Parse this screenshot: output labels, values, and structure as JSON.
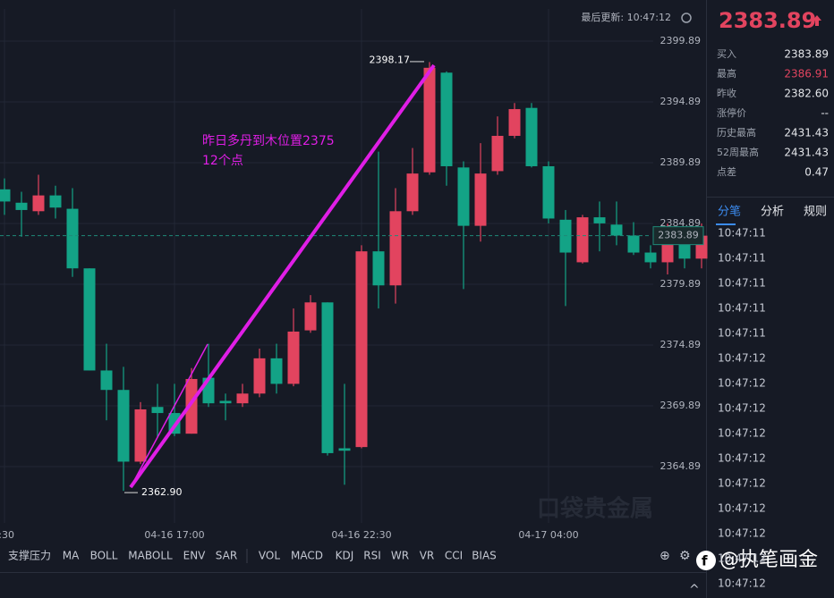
{
  "header": {
    "updated": "最后更新: 10:47:12"
  },
  "chart_data": {
    "type": "candlestick",
    "categories": [
      ":30",
      null,
      null,
      null,
      null,
      null,
      null,
      null,
      null,
      null,
      "04-16 17:00",
      null,
      null,
      null,
      null,
      null,
      null,
      null,
      null,
      null,
      null,
      "04-16 22:30",
      null,
      null,
      null,
      null,
      null,
      null,
      null,
      null,
      null,
      null,
      "04-17 04:00",
      null,
      null,
      null,
      null,
      null,
      null,
      null,
      null,
      null
    ],
    "open": [
      2387.7,
      2386.6,
      2385.9,
      2387.2,
      2386.1,
      2381.2,
      2372.8,
      2371.2,
      2365.3,
      2369.8,
      2369.3,
      2367.6,
      2372.2,
      2370.3,
      2370.1,
      2370.9,
      2373.8,
      2371.7,
      2376.1,
      2378.4,
      2366.4,
      2366.5,
      2382.6,
      2379.8,
      2385.9,
      2389.1,
      2397.3,
      2389.5,
      2384.7,
      2389.2,
      2392.1,
      2394.4,
      2389.6,
      2385.2,
      2381.7,
      2385.4,
      2384.8,
      2383.9,
      2382.5,
      2381.7,
      2383.6,
      2382.0
    ],
    "high": [
      2388.6,
      2387.5,
      2388.9,
      2388.0,
      2387.8,
      2381.2,
      2375.0,
      2373.1,
      2370.2,
      2371.7,
      2371.7,
      2373.0,
      2375.0,
      2370.9,
      2371.7,
      2374.6,
      2375.0,
      2377.9,
      2379.0,
      2378.4,
      2371.7,
      2383.1,
      2390.8,
      2387.8,
      2391.1,
      2398.17,
      2397.4,
      2390.0,
      2391.5,
      2393.7,
      2394.8,
      2394.8,
      2390.0,
      2386.0,
      2385.6,
      2386.7,
      2386.7,
      2385.0,
      2383.1,
      2384.9,
      2384.2,
      2384.9
    ],
    "low": [
      2385.6,
      2383.8,
      2385.6,
      2385.3,
      2380.5,
      2372.8,
      2368.7,
      2362.9,
      2365.1,
      2367.3,
      2367.4,
      2367.6,
      2369.8,
      2368.7,
      2369.8,
      2370.6,
      2370.9,
      2371.5,
      2375.9,
      2365.8,
      2363.4,
      2366.4,
      2377.9,
      2378.3,
      2385.6,
      2388.9,
      2388.0,
      2379.5,
      2383.4,
      2388.9,
      2391.9,
      2389.5,
      2384.9,
      2378.1,
      2381.6,
      2382.6,
      2383.1,
      2382.3,
      2381.2,
      2380.7,
      2381.2,
      2381.2
    ],
    "close": [
      2386.7,
      2386.0,
      2387.2,
      2386.2,
      2381.2,
      2372.8,
      2371.2,
      2365.3,
      2369.6,
      2369.3,
      2367.6,
      2372.1,
      2370.1,
      2370.1,
      2370.9,
      2373.8,
      2371.7,
      2376.0,
      2378.4,
      2366.0,
      2366.2,
      2382.6,
      2379.8,
      2385.9,
      2389.0,
      2397.7,
      2389.6,
      2384.7,
      2389.0,
      2392.1,
      2394.3,
      2389.6,
      2385.3,
      2382.5,
      2385.4,
      2384.9,
      2383.9,
      2382.5,
      2381.7,
      2383.6,
      2382.0,
      2383.89
    ],
    "up_color": "#e2445f",
    "down_color": "#13a386",
    "ylim": [
      2360.26,
      2402.54
    ],
    "yticks": [
      2364.89,
      2369.89,
      2374.89,
      2379.89,
      2384.89,
      2389.89,
      2394.89,
      2399.89
    ],
    "grid": true,
    "last_price": 2383.89,
    "extreme_labels": {
      "high": "2398.17",
      "low": "2362.90"
    },
    "note": [
      "昨日多丹到木位置2375",
      "12个点"
    ],
    "watermark": "口袋贵金属"
  },
  "toolbar": [
    "支撑压力",
    "MA",
    "BOLL",
    "MABOLL",
    "ENV",
    "SAR",
    "VOL",
    "MACD",
    "KDJ",
    "RSI",
    "WR",
    "VR",
    "CCI",
    "BIAS"
  ],
  "quote": {
    "price": "2383.89",
    "rows": [
      {
        "label": "买入",
        "value": "2383.89"
      },
      {
        "label": "最高",
        "value": "2386.91"
      },
      {
        "label": "昨收",
        "value": "2382.60"
      },
      {
        "label": "涨停价",
        "value": "--"
      },
      {
        "label": "历史最高",
        "value": "2431.43"
      },
      {
        "label": "52周最高",
        "value": "2431.43"
      },
      {
        "label": "点差",
        "value": "0.47"
      }
    ]
  },
  "tabs": [
    "分笔",
    "分析",
    "规则"
  ],
  "times": [
    "10:47:11",
    "10:47:11",
    "10:47:11",
    "10:47:11",
    "10:47:11",
    "10:47:12",
    "10:47:12",
    "10:47:12",
    "10:47:12",
    "10:47:12",
    "10:47:12",
    "10:47:12",
    "10:47:12",
    "10:47:12",
    "10:47:12"
  ],
  "credit": "@执笔画金"
}
